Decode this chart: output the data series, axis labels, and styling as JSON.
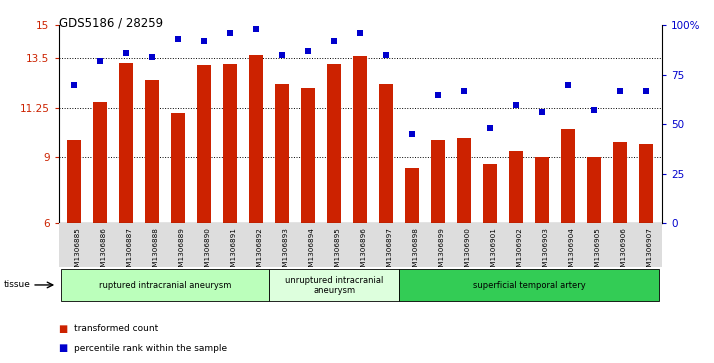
{
  "title": "GDS5186 / 28259",
  "samples": [
    "GSM1306885",
    "GSM1306886",
    "GSM1306887",
    "GSM1306888",
    "GSM1306889",
    "GSM1306890",
    "GSM1306891",
    "GSM1306892",
    "GSM1306893",
    "GSM1306894",
    "GSM1306895",
    "GSM1306896",
    "GSM1306897",
    "GSM1306898",
    "GSM1306899",
    "GSM1306900",
    "GSM1306901",
    "GSM1306902",
    "GSM1306903",
    "GSM1306904",
    "GSM1306905",
    "GSM1306906",
    "GSM1306907"
  ],
  "bar_values": [
    9.8,
    11.5,
    13.3,
    12.5,
    11.0,
    13.2,
    13.25,
    13.65,
    12.35,
    12.15,
    13.25,
    13.6,
    12.35,
    8.5,
    9.8,
    9.9,
    8.7,
    9.3,
    9.0,
    10.3,
    9.0,
    9.7,
    9.6
  ],
  "percentile_values": [
    70,
    82,
    86,
    84,
    93,
    92,
    96,
    98,
    85,
    87,
    92,
    96,
    85,
    45,
    65,
    67,
    48,
    60,
    56,
    70,
    57,
    67,
    67
  ],
  "bar_color": "#cc2200",
  "dot_color": "#0000cc",
  "ylim_left": [
    6,
    15
  ],
  "ylim_right": [
    0,
    100
  ],
  "yticks_left": [
    6,
    9,
    11.25,
    13.5,
    15
  ],
  "ytick_labels_left": [
    "6",
    "9",
    "11.25",
    "13.5",
    "15"
  ],
  "yticks_right": [
    0,
    25,
    50,
    75,
    100
  ],
  "ytick_labels_right": [
    "0",
    "25",
    "50",
    "75",
    "100%"
  ],
  "hlines": [
    9,
    11.25,
    13.5
  ],
  "groups": [
    {
      "label": "ruptured intracranial aneurysm",
      "start": 0,
      "end": 7,
      "color": "#bbffbb"
    },
    {
      "label": "unruptured intracranial\naneurysm",
      "start": 8,
      "end": 12,
      "color": "#ddffdd"
    },
    {
      "label": "superficial temporal artery",
      "start": 13,
      "end": 22,
      "color": "#33cc55"
    }
  ],
  "legend_items": [
    {
      "label": "transformed count",
      "color": "#cc2200"
    },
    {
      "label": "percentile rank within the sample",
      "color": "#0000cc"
    }
  ],
  "tissue_label": "tissue",
  "xticklabel_bg": "#dddddd",
  "plot_bg": "#ffffff",
  "fig_bg": "#ffffff"
}
